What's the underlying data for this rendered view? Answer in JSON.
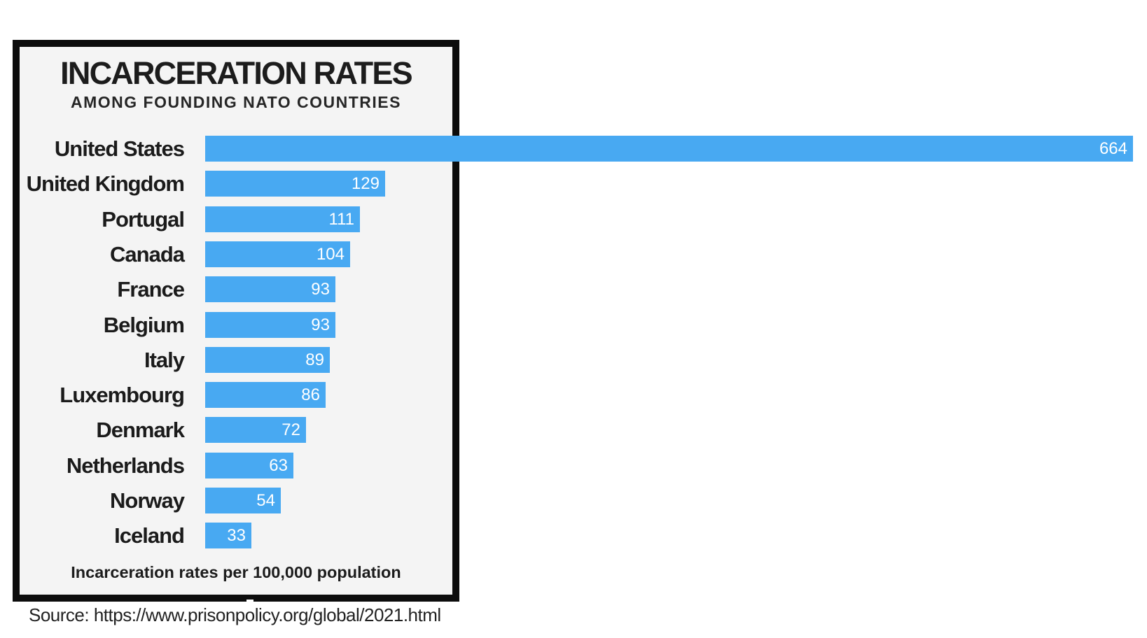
{
  "chart_data": {
    "type": "bar",
    "orientation": "horizontal",
    "title": "INCARCERATION RATES",
    "subtitle": "AMONG FOUNDING NATO COUNTRIES",
    "categories": [
      "United States",
      "United Kingdom",
      "Portugal",
      "Canada",
      "France",
      "Belgium",
      "Italy",
      "Luxembourg",
      "Denmark",
      "Netherlands",
      "Norway",
      "Iceland"
    ],
    "values": [
      664,
      129,
      111,
      104,
      93,
      93,
      89,
      86,
      72,
      63,
      54,
      33
    ],
    "footnote": "Incarceration rates per 100,000 population",
    "source": "Source: https://www.prisonpolicy.org/global/2021.html",
    "xlim": [
      0,
      664
    ],
    "bar_color": "#48a9f2",
    "value_label_color": "#ffffff",
    "frame_color": "#0c0c0c",
    "background_color": "#f4f4f4",
    "legend": false,
    "grid": false
  }
}
